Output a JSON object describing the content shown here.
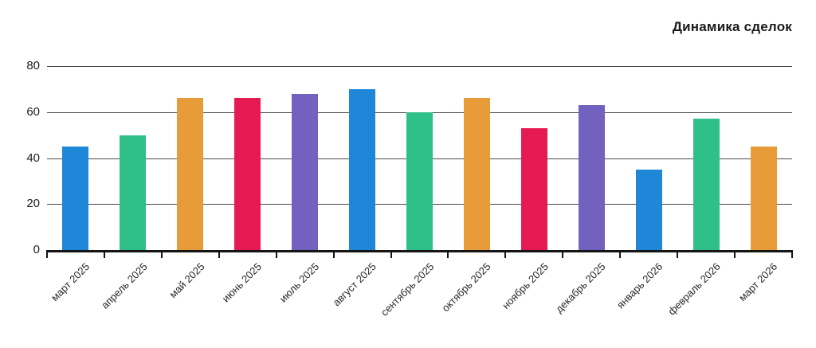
{
  "page": {
    "title": "Динамика сделок"
  },
  "chart_data": {
    "type": "bar",
    "title": "Динамика сделок",
    "categories": [
      "март 2025",
      "апрель 2025",
      "май 2025",
      "июнь 2025",
      "июль 2025",
      "август 2025",
      "сентябрь 2025",
      "октябрь 2025",
      "ноябрь 2025",
      "декабрь 2025",
      "январь 2026",
      "февраль 2026",
      "март 2026"
    ],
    "values": [
      45,
      50,
      66,
      66,
      68,
      70,
      60,
      66,
      53,
      63,
      35,
      57,
      45
    ],
    "palette": [
      "#1f87d8",
      "#2fc089",
      "#e79b39",
      "#e61a52",
      "#7361bf"
    ],
    "ylim": [
      0,
      80
    ],
    "yticks": [
      0,
      20,
      40,
      60,
      80
    ],
    "xlabel": "",
    "ylabel": "",
    "grid": true,
    "legend": false,
    "label_rotation": -45,
    "colors": {
      "grid": "#4b4b4b",
      "axis": "#141414",
      "axis_label": "#1d1d1d",
      "title": "#1b1b1b",
      "background": "#ffffff"
    }
  }
}
